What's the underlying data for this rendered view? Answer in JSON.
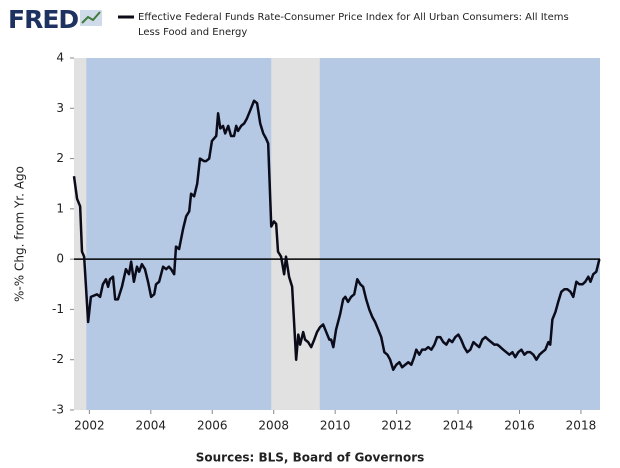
{
  "brand": "FRED",
  "chart_data": {
    "type": "line",
    "y_label": "%-% Chg. from Yr. Ago",
    "source": "Sources: BLS, Board of Governors",
    "xlim": [
      2001.5,
      2018.62
    ],
    "ylim": [
      -3,
      4
    ],
    "xticks": [
      2002,
      2004,
      2006,
      2008,
      2010,
      2012,
      2014,
      2016,
      2018
    ],
    "yticks": [
      -3,
      -2,
      -1,
      0,
      1,
      2,
      3,
      4
    ],
    "recessions": [
      [
        2001.2,
        2001.9
      ],
      [
        2007.92,
        2009.5
      ]
    ],
    "recession_color": "#e1e1e1",
    "plot_color": "#b5c9e5",
    "x": [
      2001.5,
      2001.6,
      2001.7,
      2001.76,
      2001.83,
      2001.96,
      2002.05,
      2002.25,
      2002.35,
      2002.44,
      2002.54,
      2002.61,
      2002.67,
      2002.77,
      2002.84,
      2002.93,
      2003.06,
      2003.19,
      2003.29,
      2003.36,
      2003.45,
      2003.55,
      2003.62,
      2003.71,
      2003.81,
      2003.91,
      2004.01,
      2004.11,
      2004.17,
      2004.27,
      2004.4,
      2004.5,
      2004.59,
      2004.66,
      2004.76,
      2004.82,
      2004.92,
      2005.05,
      2005.15,
      2005.25,
      2005.31,
      2005.41,
      2005.51,
      2005.6,
      2005.73,
      2005.8,
      2005.9,
      2005.99,
      2006.13,
      2006.19,
      2006.26,
      2006.35,
      2006.42,
      2006.52,
      2006.61,
      2006.71,
      2006.78,
      2006.84,
      2006.94,
      2007.04,
      2007.13,
      2007.23,
      2007.36,
      2007.46,
      2007.56,
      2007.66,
      2007.75,
      2007.82,
      2007.92,
      2008.01,
      2008.08,
      2008.14,
      2008.24,
      2008.34,
      2008.4,
      2008.5,
      2008.6,
      2008.73,
      2008.8,
      2008.86,
      2008.96,
      2009.02,
      2009.12,
      2009.22,
      2009.32,
      2009.41,
      2009.51,
      2009.61,
      2009.71,
      2009.81,
      2009.87,
      2009.94,
      2010.03,
      2010.16,
      2010.26,
      2010.33,
      2010.42,
      2010.52,
      2010.62,
      2010.72,
      2010.82,
      2010.91,
      2011.01,
      2011.11,
      2011.21,
      2011.3,
      2011.4,
      2011.5,
      2011.6,
      2011.7,
      2011.79,
      2011.89,
      2011.99,
      2012.09,
      2012.18,
      2012.28,
      2012.38,
      2012.48,
      2012.57,
      2012.64,
      2012.74,
      2012.83,
      2012.93,
      2013.03,
      2013.13,
      2013.23,
      2013.32,
      2013.42,
      2013.52,
      2013.62,
      2013.71,
      2013.81,
      2013.91,
      2014.01,
      2014.1,
      2014.2,
      2014.3,
      2014.4,
      2014.5,
      2014.59,
      2014.69,
      2014.79,
      2014.89,
      2014.98,
      2015.08,
      2015.18,
      2015.28,
      2015.38,
      2015.47,
      2015.57,
      2015.67,
      2015.77,
      2015.86,
      2015.96,
      2016.06,
      2016.16,
      2016.25,
      2016.35,
      2016.45,
      2016.55,
      2016.65,
      2016.74,
      2016.84,
      2016.94,
      2017.0,
      2017.07,
      2017.17,
      2017.26,
      2017.36,
      2017.46,
      2017.56,
      2017.66,
      2017.75,
      2017.85,
      2017.95,
      2018.05,
      2018.14,
      2018.24,
      2018.31,
      2018.4,
      2018.5,
      2018.6
    ],
    "series": [
      {
        "name": "Effective Federal Funds Rate-Consumer Price Index for All Urban Consumers: All Items Less Food and Energy",
        "color": "#0b0b1a",
        "values": [
          1.65,
          1.2,
          1.05,
          0.15,
          0.05,
          -1.25,
          -0.75,
          -0.7,
          -0.75,
          -0.5,
          -0.4,
          -0.55,
          -0.4,
          -0.35,
          -0.8,
          -0.8,
          -0.55,
          -0.2,
          -0.3,
          -0.05,
          -0.45,
          -0.15,
          -0.25,
          -0.1,
          -0.2,
          -0.45,
          -0.75,
          -0.7,
          -0.5,
          -0.45,
          -0.15,
          -0.2,
          -0.15,
          -0.2,
          -0.3,
          0.25,
          0.2,
          0.6,
          0.85,
          0.95,
          1.3,
          1.25,
          1.5,
          2.0,
          1.95,
          1.95,
          2.0,
          2.35,
          2.45,
          2.9,
          2.6,
          2.65,
          2.5,
          2.65,
          2.45,
          2.45,
          2.65,
          2.55,
          2.65,
          2.7,
          2.8,
          2.95,
          3.15,
          3.1,
          2.7,
          2.5,
          2.4,
          2.3,
          0.65,
          0.75,
          0.7,
          0.15,
          0.05,
          -0.3,
          0.05,
          -0.35,
          -0.55,
          -2.0,
          -1.5,
          -1.7,
          -1.45,
          -1.6,
          -1.65,
          -1.75,
          -1.6,
          -1.45,
          -1.35,
          -1.3,
          -1.45,
          -1.6,
          -1.6,
          -1.75,
          -1.4,
          -1.1,
          -0.8,
          -0.75,
          -0.85,
          -0.75,
          -0.7,
          -0.4,
          -0.5,
          -0.55,
          -0.8,
          -1.0,
          -1.15,
          -1.25,
          -1.4,
          -1.55,
          -1.85,
          -1.9,
          -2.0,
          -2.2,
          -2.1,
          -2.05,
          -2.15,
          -2.1,
          -2.05,
          -2.1,
          -1.95,
          -1.8,
          -1.9,
          -1.8,
          -1.8,
          -1.75,
          -1.8,
          -1.7,
          -1.55,
          -1.55,
          -1.65,
          -1.7,
          -1.6,
          -1.65,
          -1.55,
          -1.5,
          -1.6,
          -1.75,
          -1.85,
          -1.8,
          -1.65,
          -1.7,
          -1.75,
          -1.6,
          -1.55,
          -1.6,
          -1.65,
          -1.7,
          -1.7,
          -1.75,
          -1.8,
          -1.85,
          -1.9,
          -1.85,
          -1.95,
          -1.85,
          -1.8,
          -1.9,
          -1.85,
          -1.85,
          -1.9,
          -2.0,
          -1.9,
          -1.85,
          -1.8,
          -1.65,
          -1.7,
          -1.2,
          -1.05,
          -0.85,
          -0.65,
          -0.6,
          -0.6,
          -0.65,
          -0.75,
          -0.45,
          -0.5,
          -0.5,
          -0.45,
          -0.35,
          -0.45,
          -0.3,
          -0.25,
          0.0
        ]
      }
    ]
  }
}
